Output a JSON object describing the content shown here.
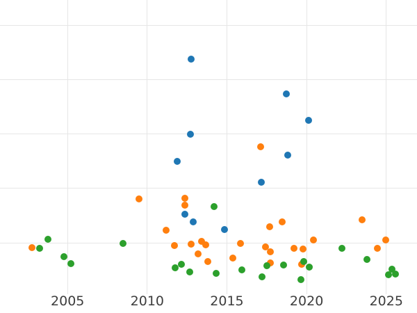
{
  "figure": {
    "background_color": "#ffffff",
    "grid_color": "#e6e6e6",
    "tick_label_color": "#3d3d3d"
  },
  "chart_data": {
    "type": "scatter",
    "title": "",
    "xlabel": "",
    "ylabel": "",
    "grid": true,
    "legend_position": "none",
    "x_ticks": [
      2005,
      2010,
      2015,
      2020,
      2025
    ],
    "y_tick_labels": [],
    "y_gridlines": [
      1,
      2,
      3,
      4,
      5
    ],
    "y_units": "unlabeled-gridline-units",
    "x_domain": [
      2000.76,
      2026.93
    ],
    "y_domain": [
      -0.29,
      5.46
    ],
    "series": [
      {
        "name": "blue",
        "color": "#1f77b4",
        "points": [
          [
            2011.87,
            2.49
          ],
          [
            2012.35,
            1.53
          ],
          [
            2012.71,
            3.0
          ],
          [
            2012.75,
            4.38
          ],
          [
            2012.87,
            1.39
          ],
          [
            2014.85,
            1.24
          ],
          [
            2017.16,
            2.11
          ],
          [
            2018.72,
            3.73
          ],
          [
            2018.82,
            2.61
          ],
          [
            2020.14,
            3.25
          ]
        ]
      },
      {
        "name": "orange",
        "color": "#ff7f0e",
        "points": [
          [
            2002.77,
            0.91
          ],
          [
            2009.47,
            1.81
          ],
          [
            2011.18,
            1.23
          ],
          [
            2011.72,
            0.95
          ],
          [
            2012.35,
            1.82
          ],
          [
            2012.36,
            1.69
          ],
          [
            2012.77,
            0.97
          ],
          [
            2013.19,
            0.79
          ],
          [
            2013.39,
            1.03
          ],
          [
            2013.67,
            0.96
          ],
          [
            2013.8,
            0.66
          ],
          [
            2015.36,
            0.72
          ],
          [
            2015.87,
            0.99
          ],
          [
            2017.1,
            2.77
          ],
          [
            2017.41,
            0.92
          ],
          [
            2017.7,
            1.3
          ],
          [
            2017.71,
            0.84
          ],
          [
            2017.73,
            0.63
          ],
          [
            2018.45,
            1.38
          ],
          [
            2019.2,
            0.9
          ],
          [
            2019.7,
            0.61
          ],
          [
            2019.77,
            0.88
          ],
          [
            2020.43,
            1.05
          ],
          [
            2023.47,
            1.42
          ],
          [
            2024.46,
            0.9
          ],
          [
            2024.96,
            1.05
          ]
        ]
      },
      {
        "name": "green",
        "color": "#2ca02c",
        "points": [
          [
            2003.23,
            0.9
          ],
          [
            2003.78,
            1.06
          ],
          [
            2004.76,
            0.74
          ],
          [
            2005.19,
            0.62
          ],
          [
            2008.46,
            0.99
          ],
          [
            2011.74,
            0.54
          ],
          [
            2012.16,
            0.6
          ],
          [
            2012.68,
            0.47
          ],
          [
            2014.18,
            1.66
          ],
          [
            2014.31,
            0.44
          ],
          [
            2015.94,
            0.5
          ],
          [
            2017.2,
            0.37
          ],
          [
            2017.52,
            0.58
          ],
          [
            2018.54,
            0.59
          ],
          [
            2019.66,
            0.32
          ],
          [
            2019.84,
            0.65
          ],
          [
            2020.17,
            0.55
          ],
          [
            2022.21,
            0.9
          ],
          [
            2023.81,
            0.7
          ],
          [
            2025.13,
            0.41
          ],
          [
            2025.38,
            0.51
          ],
          [
            2025.58,
            0.43
          ]
        ]
      }
    ]
  }
}
